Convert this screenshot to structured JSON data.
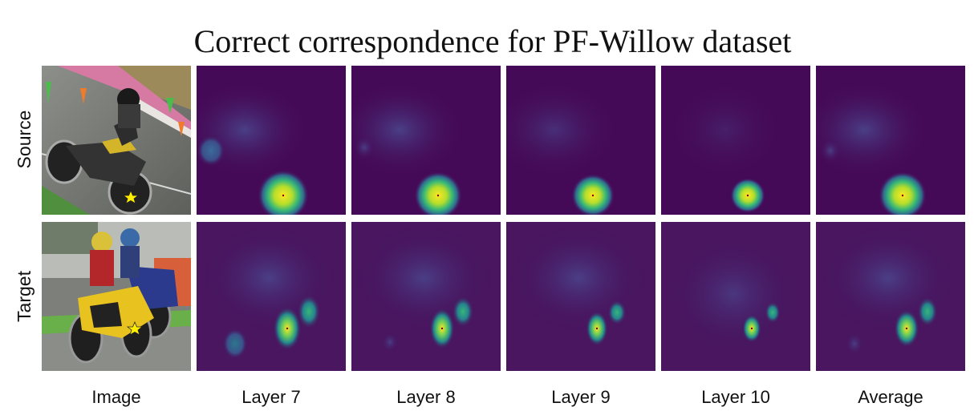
{
  "title": "Correct correspondence for PF-Willow dataset",
  "rows": [
    {
      "label": "Source"
    },
    {
      "label": "Target"
    }
  ],
  "columns": [
    {
      "label": "Image"
    },
    {
      "label": "Layer 7"
    },
    {
      "label": "Layer 8"
    },
    {
      "label": "Layer 9"
    },
    {
      "label": "Layer 10"
    },
    {
      "label": "Average"
    }
  ],
  "colors": {
    "heatmap_background": "#450a57",
    "heatmap_hot": "#fde725",
    "keypoint_star": "#ffee00"
  }
}
